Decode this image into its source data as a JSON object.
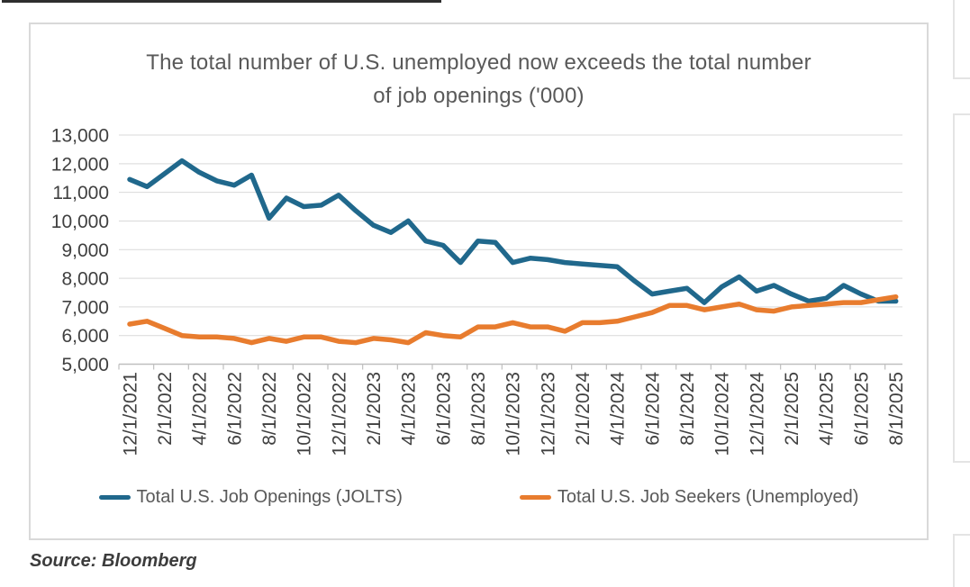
{
  "page": {
    "source_note": "Source: Bloomberg"
  },
  "chart_data": {
    "type": "line",
    "title_line1": "The total number of U.S. unemployed now exceeds the total number",
    "title_line2": "of job openings ('000)",
    "units": "thousands",
    "x": [
      "12/1/2021",
      "1/1/2022",
      "2/1/2022",
      "3/1/2022",
      "4/1/2022",
      "5/1/2022",
      "6/1/2022",
      "7/1/2022",
      "8/1/2022",
      "9/1/2022",
      "10/1/2022",
      "11/1/2022",
      "12/1/2022",
      "1/1/2023",
      "2/1/2023",
      "3/1/2023",
      "4/1/2023",
      "5/1/2023",
      "6/1/2023",
      "7/1/2023",
      "8/1/2023",
      "9/1/2023",
      "10/1/2023",
      "11/1/2023",
      "12/1/2023",
      "1/1/2024",
      "2/1/2024",
      "3/1/2024",
      "4/1/2024",
      "5/1/2024",
      "6/1/2024",
      "7/1/2024",
      "8/1/2024",
      "9/1/2024",
      "10/1/2024",
      "11/1/2024",
      "12/1/2024",
      "1/1/2025",
      "2/1/2025",
      "3/1/2025",
      "4/1/2025",
      "5/1/2025",
      "6/1/2025",
      "7/1/2025",
      "8/1/2025"
    ],
    "x_tick_labels": [
      "12/1/2021",
      "2/1/2022",
      "4/1/2022",
      "6/1/2022",
      "8/1/2022",
      "10/1/2022",
      "12/1/2022",
      "2/1/2023",
      "4/1/2023",
      "6/1/2023",
      "8/1/2023",
      "10/1/2023",
      "12/1/2023",
      "2/1/2024",
      "4/1/2024",
      "6/1/2024",
      "8/1/2024",
      "10/1/2024",
      "12/1/2024",
      "2/1/2025",
      "4/1/2025",
      "6/1/2025",
      "8/1/2025"
    ],
    "series": [
      {
        "name": "Total U.S. Job Openings (JOLTS)",
        "color": "#20688c",
        "values": [
          11450,
          11200,
          11650,
          12100,
          11700,
          11400,
          11250,
          11600,
          10100,
          10800,
          10500,
          10550,
          10900,
          10350,
          9850,
          9600,
          10000,
          9300,
          9150,
          8550,
          9300,
          9250,
          8550,
          8700,
          8650,
          8550,
          8500,
          8450,
          8400,
          7900,
          7450,
          7550,
          7650,
          7150,
          7700,
          8050,
          7550,
          7750,
          7450,
          7200,
          7300,
          7750,
          7450,
          7200,
          7200
        ]
      },
      {
        "name": "Total U.S. Job Seekers (Unemployed)",
        "color": "#e87c2e",
        "values": [
          6400,
          6500,
          6250,
          6000,
          5950,
          5950,
          5900,
          5750,
          5900,
          5800,
          5950,
          5950,
          5800,
          5750,
          5900,
          5850,
          5750,
          6100,
          6000,
          5950,
          6300,
          6300,
          6450,
          6300,
          6300,
          6150,
          6450,
          6450,
          6500,
          6650,
          6800,
          7050,
          7050,
          6900,
          7000,
          7100,
          6900,
          6850,
          7000,
          7050,
          7100,
          7150,
          7150,
          7250,
          7350
        ]
      }
    ],
    "ylim": [
      5000,
      13000
    ],
    "y_ticks": [
      5000,
      6000,
      7000,
      8000,
      9000,
      10000,
      11000,
      12000,
      13000
    ],
    "y_tick_labels": [
      "5,000",
      "6,000",
      "7,000",
      "8,000",
      "9,000",
      "10,000",
      "11,000",
      "12,000",
      "13,000"
    ],
    "grid": true,
    "legend_position": "bottom"
  }
}
